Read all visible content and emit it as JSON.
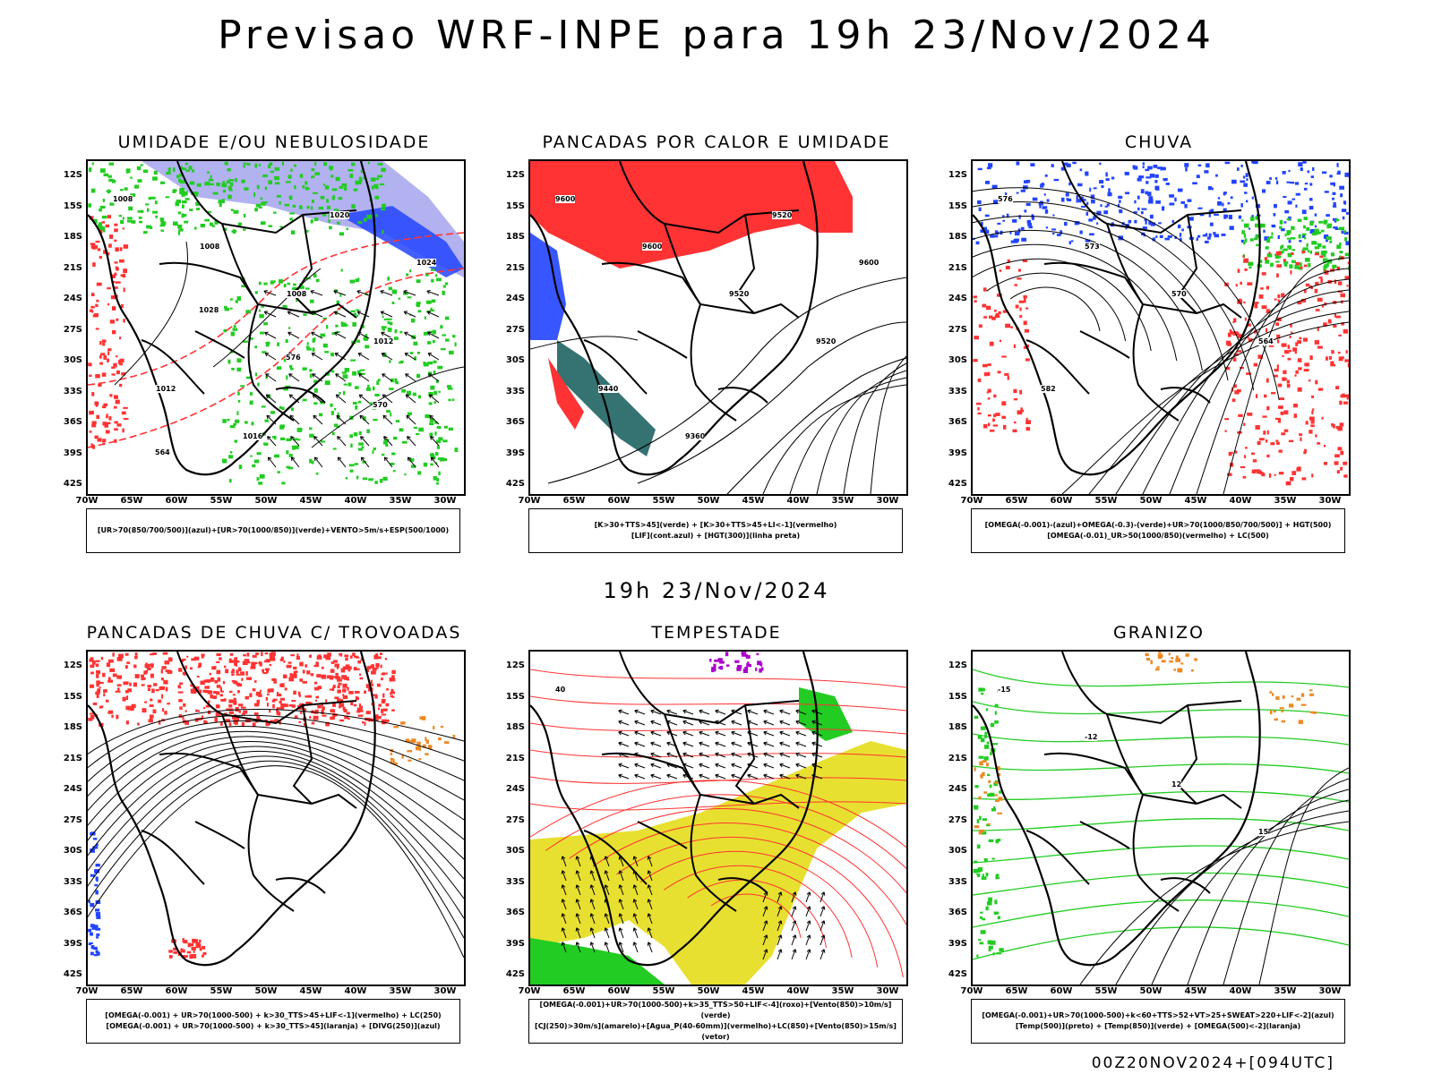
{
  "title": "Previsao WRF-INPE  para 19h 23/Nov/2024",
  "mid_title": "19h 23/Nov/2024",
  "footer": "00Z20NOV2024+[094UTC]",
  "axes": {
    "lat": [
      "12S",
      "15S",
      "18S",
      "21S",
      "24S",
      "27S",
      "30S",
      "33S",
      "36S",
      "39S",
      "42S"
    ],
    "lon": [
      "70W",
      "65W",
      "60W",
      "55W",
      "50W",
      "45W",
      "40W",
      "35W",
      "30W"
    ]
  },
  "panels": [
    {
      "title": "UMIDADE E/OU NEBULOSIDADE",
      "legend": [
        "[UR>70(850/700/500)](azul)+[UR>70(1000/850)](verde)+VENTO>5m/s+ESP(500/1000)"
      ],
      "contour_labels": [
        "1008",
        "1008",
        "1008",
        "1012",
        "1012",
        "1016",
        "1020",
        "1024",
        "1028",
        "576",
        "570",
        "564"
      ]
    },
    {
      "title": "PANCADAS POR CALOR E UMIDADE",
      "legend": [
        "[K>30+TTS>45](verde) + [K>30+TTS>45+LI<-1](vermelho)",
        "[LIF](cont.azul) + [HGT(300)](linha preta)"
      ],
      "contour_labels": [
        "9600",
        "9600",
        "9520",
        "9520",
        "9440",
        "9360",
        "9520",
        "9600"
      ]
    },
    {
      "title": "CHUVA",
      "legend": [
        "[OMEGA(-0.001)-(azul)+OMEGA(-0.3)-(verde)+UR>70(1000/850/700/500)] + HGT(500)",
        "[OMEGA(-0.01)_UR>50(1000/850)(vermelho) + LC(500)"
      ],
      "contour_labels": [
        "576",
        "573",
        "570",
        "564",
        "582"
      ]
    },
    {
      "title": "PANCADAS DE CHUVA C/ TROVOADAS",
      "legend": [
        "[OMEGA(-0.001) + UR>70(1000-500) + k>30_TTS>45+LIF<-1](vermelho) + LC(250)",
        "[OMEGA(-0.001) + UR>70(1000-500) + k>30_TTS>45](laranja) + [DIVG(250)](azul)"
      ],
      "contour_labels": []
    },
    {
      "title": "TEMPESTADE",
      "legend": [
        "[OMEGA(-0.001)+UR>70(1000-500)+k>35_TTS>50+LIF<-4](roxo)+[Vento(850)>10m/s](verde)",
        "[CJ(250)>30m/s](amarelo)+[Agua_P(40-60mm)](vermelho)+LC(850)+[Vento(850)>15m/s](vetor)"
      ],
      "contour_labels": [
        "40"
      ]
    },
    {
      "title": "GRANIZO",
      "legend": [
        "[OMEGA(-0.001)+UR>70(1000-500)+k<60+TTS>52+VT>25+SWEAT>220+LIF<-2](azul)",
        "[Temp(500)](preto) + [Temp(850)](verde) + [OMEGA(500)<-2](laranja)"
      ],
      "contour_labels": [
        "-15",
        "-12",
        "12",
        "15"
      ]
    }
  ],
  "colors": {
    "red": "#ff3333",
    "green": "#22cc22",
    "blue": "#2244ff",
    "lavender": "#aaaaee",
    "teal": "#2a6a6a",
    "yellow": "#e8e030",
    "orange": "#ee8822",
    "purple": "#aa00cc"
  }
}
